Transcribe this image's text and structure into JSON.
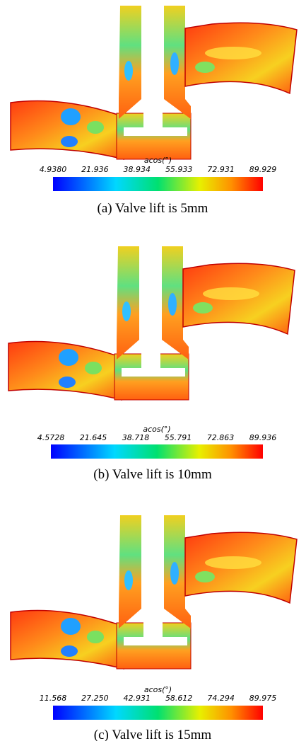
{
  "panels": [
    {
      "colorbar": {
        "title": "acos(°)",
        "ticks": [
          "4.9380",
          "21.936",
          "38.934",
          "55.933",
          "72.931",
          "89.929"
        ]
      },
      "caption": "(a) Valve lift is 5mm"
    },
    {
      "colorbar": {
        "title": "acos(°)",
        "ticks": [
          "4.5728",
          "21.645",
          "38.718",
          "55.791",
          "72.863",
          "89.936"
        ]
      },
      "caption": "(b) Valve lift is 10mm"
    },
    {
      "colorbar": {
        "title": "acos(°)",
        "ticks": [
          "11.568",
          "27.250",
          "42.931",
          "58.612",
          "74.294",
          "89.975"
        ]
      },
      "caption": "(c) Valve lift is 15mm"
    }
  ]
}
